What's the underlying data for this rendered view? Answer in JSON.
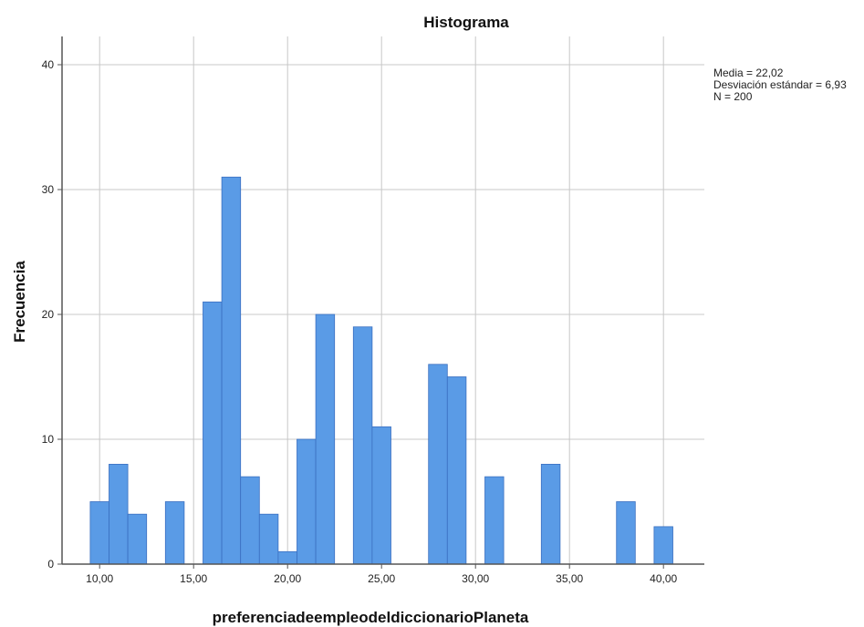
{
  "chart_data": {
    "type": "bar",
    "title": "Histograma",
    "xlabel": "preferenciadeempleodeldiccionarioPlaneta",
    "ylabel": "Frecuencia",
    "xlim": [
      8,
      42
    ],
    "ylim": [
      0,
      42
    ],
    "x_ticks": [
      10,
      15,
      20,
      25,
      30,
      35,
      40
    ],
    "x_tick_labels": [
      "10,00",
      "15,00",
      "20,00",
      "25,00",
      "30,00",
      "35,00",
      "40,00"
    ],
    "y_ticks": [
      0,
      10,
      20,
      30,
      40
    ],
    "y_tick_labels": [
      "0",
      "10",
      "20",
      "30",
      "40"
    ],
    "bin_width": 1,
    "bins": [
      {
        "x": 10,
        "count": 5
      },
      {
        "x": 11,
        "count": 8
      },
      {
        "x": 12,
        "count": 4
      },
      {
        "x": 14,
        "count": 5
      },
      {
        "x": 16,
        "count": 21
      },
      {
        "x": 17,
        "count": 31
      },
      {
        "x": 18,
        "count": 7
      },
      {
        "x": 19,
        "count": 4
      },
      {
        "x": 20,
        "count": 1
      },
      {
        "x": 21,
        "count": 10
      },
      {
        "x": 22,
        "count": 20
      },
      {
        "x": 24,
        "count": 19
      },
      {
        "x": 25,
        "count": 11
      },
      {
        "x": 28,
        "count": 16
      },
      {
        "x": 29,
        "count": 15
      },
      {
        "x": 31,
        "count": 7
      },
      {
        "x": 34,
        "count": 8
      },
      {
        "x": 38,
        "count": 5
      },
      {
        "x": 40,
        "count": 3
      }
    ],
    "bar_color": "#5a9be6",
    "grid": true,
    "legend": "none",
    "stats": {
      "mean_text": "Media = 22,02",
      "std_text": "Desviación estándar = 6,93",
      "n_text": "N = 200"
    }
  }
}
